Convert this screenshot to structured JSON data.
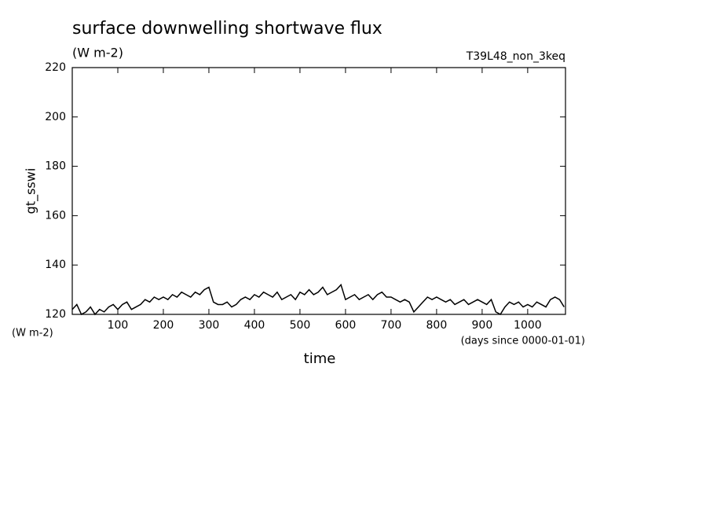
{
  "chart_data": {
    "type": "line",
    "title": "surface downwelling shortwave flux",
    "subtitle": "(W m-2)",
    "annotation": "T39L48_non_3keq",
    "y_label": "gt_sswi",
    "y_units": "(W m-2)",
    "x_label": "time",
    "x_units": "(days since 0000-01-01)",
    "x": [
      0,
      10,
      20,
      30,
      40,
      50,
      60,
      70,
      80,
      90,
      100,
      110,
      120,
      130,
      140,
      150,
      160,
      170,
      180,
      190,
      200,
      210,
      220,
      230,
      240,
      250,
      260,
      270,
      280,
      290,
      300,
      310,
      320,
      330,
      340,
      350,
      360,
      370,
      380,
      390,
      400,
      410,
      420,
      430,
      440,
      450,
      460,
      470,
      480,
      490,
      500,
      510,
      520,
      530,
      540,
      550,
      560,
      570,
      580,
      590,
      600,
      610,
      620,
      630,
      640,
      650,
      660,
      670,
      680,
      690,
      700,
      710,
      720,
      730,
      740,
      750,
      760,
      770,
      780,
      790,
      800,
      810,
      820,
      830,
      840,
      850,
      860,
      870,
      880,
      890,
      900,
      910,
      920,
      930,
      940,
      950,
      960,
      970,
      980,
      990,
      1000,
      1010,
      1020,
      1030,
      1040,
      1050,
      1060,
      1070,
      1080
    ],
    "series": [
      {
        "color": "#000000",
        "values": [
          122,
          124,
          120,
          121,
          123,
          120,
          122,
          121,
          123,
          124,
          122,
          124,
          125,
          122,
          123,
          124,
          126,
          125,
          127,
          126,
          127,
          126,
          128,
          127,
          129,
          128,
          127,
          129,
          128,
          130,
          131,
          125,
          124,
          124,
          125,
          123,
          124,
          126,
          127,
          126,
          128,
          127,
          129,
          128,
          127,
          129,
          126,
          127,
          128,
          126,
          129,
          128,
          130,
          128,
          129,
          131,
          128,
          129,
          130,
          132,
          126,
          127,
          128,
          126,
          127,
          128,
          126,
          128,
          129,
          127,
          127,
          126,
          125,
          126,
          125,
          121,
          123,
          125,
          127,
          126,
          127,
          126,
          125,
          126,
          124,
          125,
          126,
          124,
          125,
          126,
          125,
          124,
          126,
          121,
          120,
          123,
          125,
          124,
          125,
          123,
          124,
          123,
          125,
          124,
          123,
          126,
          127,
          126,
          123
        ]
      }
    ],
    "xlim": [
      0,
      1083
    ],
    "ylim": [
      120,
      220
    ],
    "xticks": [
      100,
      200,
      300,
      400,
      500,
      600,
      700,
      800,
      900,
      1000
    ],
    "yticks": [
      120,
      140,
      160,
      180,
      200,
      220
    ]
  }
}
